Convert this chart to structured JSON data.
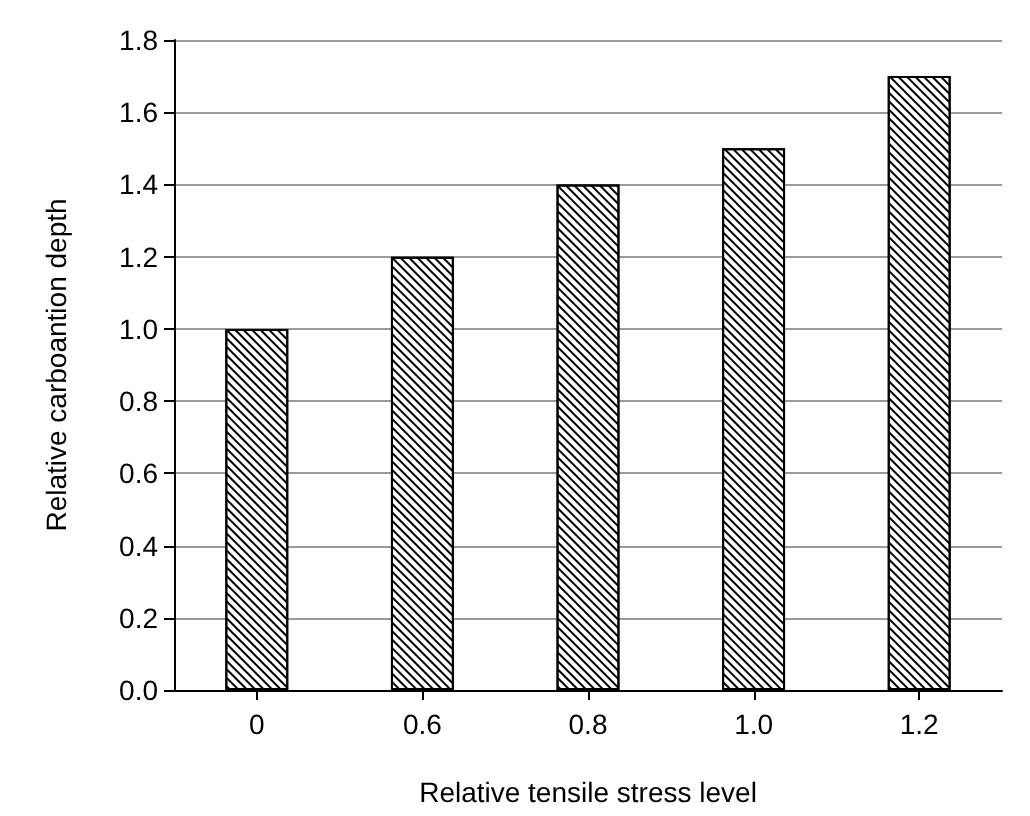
{
  "chart_data": {
    "type": "bar",
    "xlabel": "Relative tensile stress level",
    "ylabel": "Relative carboantion depth",
    "categories": [
      "0",
      "0.6",
      "0.8",
      "1.0",
      "1.2"
    ],
    "values": [
      1.0,
      1.2,
      1.4,
      1.5,
      1.7
    ],
    "color": "#ffffff",
    "ylim": [
      0,
      1.8
    ],
    "yticks": [
      {
        "value": 0,
        "label": "0.0"
      },
      0.2,
      0.4,
      0.6,
      0.8,
      {
        "value": 1,
        "label": "1.0"
      },
      1.2,
      1.4,
      1.6,
      1.8
    ],
    "grid": "y"
  }
}
